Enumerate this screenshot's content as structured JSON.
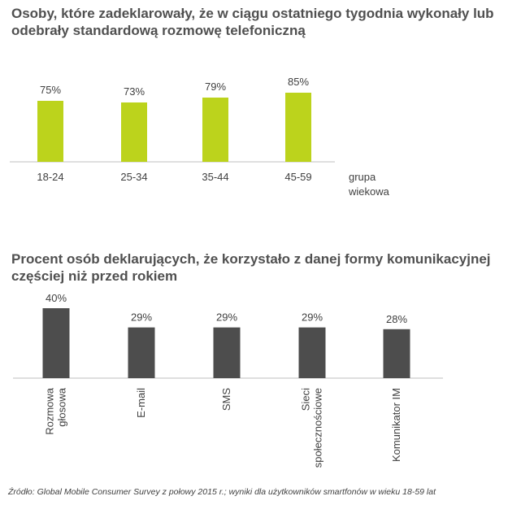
{
  "chart_data": [
    {
      "type": "bar",
      "title": "Osoby, które zadeklarowały, że w ciągu ostatniego tygodnia wykonały lub odebrały standardową rozmowę telefoniczną",
      "categories": [
        "18-24",
        "25-34",
        "35-44",
        "45-59"
      ],
      "values": [
        75,
        73,
        79,
        85
      ],
      "data_labels": [
        "75%",
        "73%",
        "79%",
        "85%"
      ],
      "xlabel": [
        "grupa",
        "wiekowa"
      ],
      "ylabel": "",
      "ylim": [
        0,
        100
      ],
      "color": "#bcd31c",
      "grid": false
    },
    {
      "type": "bar",
      "title": "Procent osób deklarujących, że korzystało z danej formy komunikacyjnej częściej niż przed rokiem",
      "categories": [
        [
          "Rozmowa",
          "głosowa"
        ],
        [
          "E-mail"
        ],
        [
          "SMS"
        ],
        [
          "Sieci",
          "społecznościowe"
        ],
        [
          "Komunikator IM"
        ]
      ],
      "values": [
        40,
        29,
        29,
        29,
        28
      ],
      "data_labels": [
        "40%",
        "29%",
        "29%",
        "29%",
        "28%"
      ],
      "xlabel": "",
      "ylabel": "",
      "ylim": [
        0,
        45
      ],
      "color": "#4d4d4d",
      "grid": false
    }
  ],
  "source": "Źródło: Global Mobile Consumer Survey z połowy 2015 r.; wyniki dla użytkowników smartfonów w wieku 18-59 lat"
}
